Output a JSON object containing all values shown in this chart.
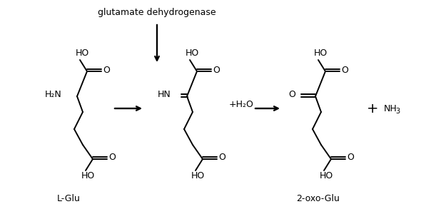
{
  "bg_color": "#ffffff",
  "title": "glutamate dehydrogenase",
  "label_lglu": "L-Glu",
  "label_2oxo": "2-oxo-Glu",
  "label_nh3": "NH3",
  "label_h2o": "+H₂O",
  "figsize": [
    5.9,
    3.0
  ],
  "dpi": 100
}
